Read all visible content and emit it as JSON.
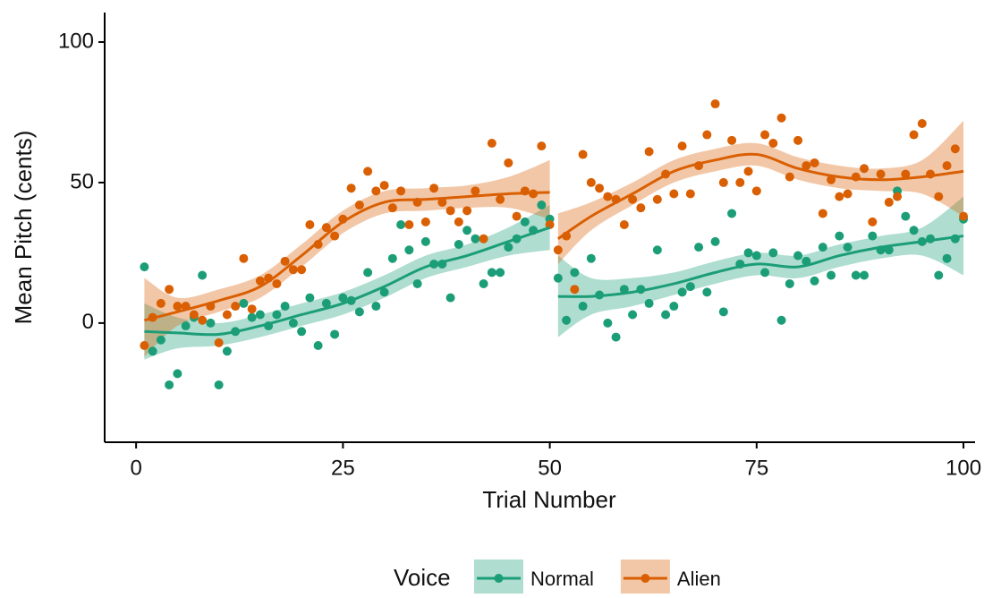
{
  "chart_data": {
    "type": "scatter",
    "x_label": "Trial Number",
    "y_label": "Mean Pitch (cents)",
    "xlim": [
      -3.8,
      101.4
    ],
    "ylim": [
      -42.4,
      110.5
    ],
    "xticks": [
      0,
      25,
      50,
      75,
      100
    ],
    "yticks": [
      0,
      50,
      100
    ],
    "legend_title": "Voice",
    "legend_position": "bottom",
    "x": [
      1,
      2,
      3,
      4,
      5,
      6,
      7,
      8,
      9,
      10,
      11,
      12,
      13,
      14,
      15,
      16,
      17,
      18,
      19,
      20,
      21,
      22,
      23,
      24,
      25,
      26,
      27,
      28,
      29,
      30,
      31,
      32,
      33,
      34,
      35,
      36,
      37,
      38,
      39,
      40,
      41,
      42,
      43,
      44,
      45,
      46,
      47,
      48,
      49,
      50,
      51,
      52,
      53,
      54,
      55,
      56,
      57,
      58,
      59,
      60,
      61,
      62,
      63,
      64,
      65,
      66,
      67,
      68,
      69,
      70,
      71,
      72,
      73,
      74,
      75,
      76,
      77,
      78,
      79,
      80,
      81,
      82,
      83,
      84,
      85,
      86,
      87,
      88,
      89,
      90,
      91,
      92,
      93,
      94,
      95,
      96,
      97,
      98,
      99,
      100
    ],
    "series": [
      {
        "name": "Normal",
        "color": "#1b9e77",
        "values": [
          20,
          -10,
          -6,
          -22,
          -18,
          -1,
          2,
          17,
          0,
          -22,
          -10,
          -3,
          7,
          2,
          3,
          -1,
          3,
          6,
          0,
          -3,
          9,
          -8,
          7,
          -4,
          9,
          8,
          4,
          18,
          6,
          11,
          23,
          35,
          26,
          14,
          29,
          21,
          21,
          9,
          28,
          33,
          30,
          14,
          18,
          18,
          27,
          30,
          36,
          33,
          42,
          37,
          16,
          1,
          18,
          6,
          23,
          10,
          0,
          -5,
          12,
          3,
          12,
          7,
          26,
          3,
          6,
          11,
          13,
          27,
          11,
          29,
          4,
          39,
          21,
          25,
          24,
          18,
          25,
          1,
          14,
          24,
          22,
          15,
          27,
          17,
          31,
          27,
          17,
          17,
          31,
          26,
          26,
          47,
          38,
          33,
          29,
          30,
          17,
          23,
          30,
          37
        ],
        "fits": [
          {
            "x": [
              1,
              5,
              10,
              15,
              20,
              25,
              30,
              35,
              40,
              45,
              50
            ],
            "values": [
              -3,
              -3.5,
              -4,
              -1,
              3,
              7,
              13,
              20,
              24,
              29,
              34
            ],
            "lower": [
              -13,
              -9,
              -8,
              -5,
              -1,
              3,
              9,
              16,
              20,
              24,
              26
            ],
            "upper": [
              7,
              2,
              0,
              3,
              7,
              11,
              17,
              24,
              28,
              34,
              42
            ]
          },
          {
            "x": [
              51,
              55,
              60,
              65,
              70,
              75,
              80,
              85,
              90,
              95,
              100
            ],
            "values": [
              9.5,
              9.5,
              11,
              14,
              18,
              21,
              20,
              24,
              27,
              29,
              31
            ],
            "lower": [
              -5,
              3,
              6,
              10,
              14,
              17,
              16,
              20,
              23,
              24,
              17
            ],
            "upper": [
              24,
              16,
              16,
              18,
              22,
              25,
              24,
              28,
              31,
              34,
              45
            ]
          }
        ]
      },
      {
        "name": "Alien",
        "color": "#d95f02",
        "values": [
          -8,
          2,
          7,
          12,
          6,
          6,
          3,
          1,
          6,
          -7,
          3,
          6,
          23,
          5,
          15,
          16,
          14,
          22,
          19,
          19,
          35,
          28,
          34,
          31,
          37,
          48,
          42,
          54,
          47,
          49,
          41,
          47,
          35,
          43,
          36,
          48,
          43,
          40,
          36,
          40,
          47,
          30,
          64,
          44,
          57,
          38,
          47,
          46,
          63,
          35,
          26,
          31,
          12,
          60,
          50,
          48,
          45,
          44,
          35,
          44,
          41,
          61,
          44,
          53,
          46,
          63,
          46,
          56,
          67,
          78,
          50,
          65,
          50,
          54,
          47,
          67,
          64,
          73,
          52,
          65,
          56,
          57,
          39,
          51,
          45,
          46,
          52,
          55,
          36,
          53,
          43,
          45,
          53,
          67,
          71,
          53,
          45,
          56,
          62,
          38
        ],
        "fits": [
          {
            "x": [
              1,
              5,
              10,
              15,
              20,
              25,
              30,
              35,
              40,
              45,
              50
            ],
            "values": [
              1,
              4,
              8,
              13,
              24,
              36,
              43,
              44,
              45,
              46,
              46.5
            ],
            "lower": [
              -12,
              -1,
              4,
              9,
              20,
              32,
              39,
              40,
              41,
              41,
              37
            ],
            "upper": [
              16,
              9,
              12,
              17,
              28,
              40,
              47,
              48,
              49,
              52,
              58
            ]
          },
          {
            "x": [
              51,
              55,
              60,
              65,
              70,
              75,
              80,
              85,
              90,
              95,
              100
            ],
            "values": [
              30,
              38,
              46,
              54,
              58,
              60,
              55,
              52,
              51,
              52,
              54
            ],
            "lower": [
              21,
              33,
              42,
              50,
              54,
              56,
              51,
              48,
              47,
              46,
              38
            ],
            "upper": [
              39,
              43,
              50,
              58,
              62,
              64,
              59,
              56,
              55,
              58,
              72
            ]
          }
        ]
      }
    ]
  }
}
